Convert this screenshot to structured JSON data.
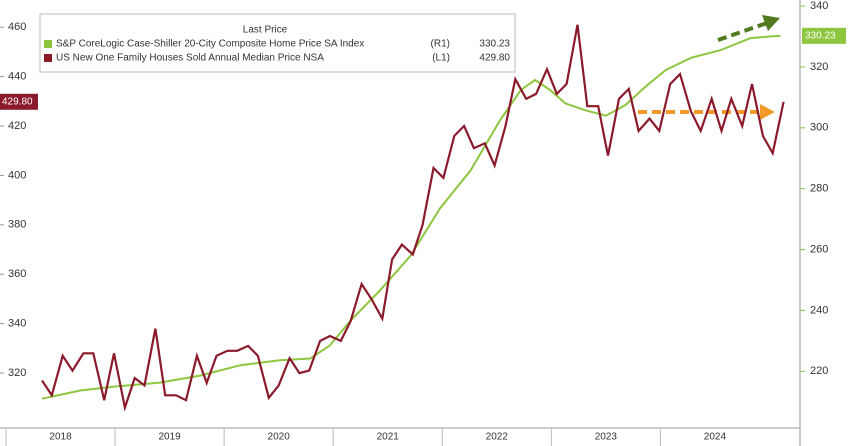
{
  "chart_data": {
    "type": "line",
    "legend_title": "Last Price",
    "xlim": [
      2017.945,
      2025.28
    ],
    "xticks": [
      {
        "value": 2018.5,
        "label": "2018"
      },
      {
        "value": 2019.5,
        "label": "2019"
      },
      {
        "value": 2020.5,
        "label": "2020"
      },
      {
        "value": 2021.5,
        "label": "2021"
      },
      {
        "value": 2022.5,
        "label": "2022"
      },
      {
        "value": 2023.5,
        "label": "2023"
      },
      {
        "value": 2024.5,
        "label": "2024"
      }
    ],
    "ylim": [
      301,
      471
    ],
    "yticks": [
      320,
      340,
      360,
      380,
      400,
      420,
      440,
      460
    ],
    "y2lim": [
      204,
      342
    ],
    "y2ticks": [
      220,
      240,
      260,
      280,
      300,
      320,
      340
    ],
    "grid": false,
    "legend": "top-left",
    "series": [
      {
        "name": "S&P CoreLogic Case-Shiller 20-City Composite Home Price SA Index",
        "axis_ref": "(R1)",
        "axis": "y2",
        "color": "#8dc63f",
        "x": [
          2018.33,
          2018.68,
          2019.0,
          2019.41,
          2019.78,
          2020.15,
          2020.51,
          2020.79,
          2020.97,
          2021.16,
          2021.43,
          2021.71,
          2021.98,
          2022.26,
          2022.53,
          2022.72,
          2022.85,
          2022.99,
          2023.13,
          2023.31,
          2023.5,
          2023.68,
          2023.86,
          2024.05,
          2024.28,
          2024.55,
          2024.83,
          2025.1
        ],
        "values": [
          211,
          213.7,
          215,
          216.3,
          218.6,
          222,
          223.6,
          224.2,
          228.5,
          236.7,
          246.6,
          258,
          273.6,
          286,
          302.5,
          312.4,
          315.7,
          312.4,
          308,
          305.8,
          304,
          307.5,
          313.4,
          319,
          323,
          325.5,
          329.5,
          330.23
        ],
        "value_labels": [
          null,
          null,
          null,
          null,
          null,
          null,
          null,
          null,
          null,
          null,
          null,
          null,
          null,
          null,
          null,
          null,
          null,
          null,
          null,
          null,
          null,
          null,
          null,
          null,
          null,
          null,
          null,
          "330.23"
        ]
      },
      {
        "name": "US New One Family Houses Sold Annual Median Price NSA",
        "axis_ref": "(L1)",
        "axis": "y",
        "color": "#8b1a2b",
        "x": [
          2018.33,
          2018.42,
          2018.52,
          2018.61,
          2018.71,
          2018.8,
          2018.9,
          2018.99,
          2019.09,
          2019.18,
          2019.27,
          2019.37,
          2019.46,
          2019.56,
          2019.65,
          2019.75,
          2019.84,
          2019.93,
          2020.03,
          2020.12,
          2020.22,
          2020.31,
          2020.41,
          2020.5,
          2020.6,
          2020.69,
          2020.78,
          2020.88,
          2020.97,
          2021.07,
          2021.16,
          2021.26,
          2021.35,
          2021.45,
          2021.54,
          2021.63,
          2021.73,
          2021.82,
          2021.92,
          2022.01,
          2022.11,
          2022.2,
          2022.29,
          2022.39,
          2022.48,
          2022.58,
          2022.67,
          2022.77,
          2022.86,
          2022.96,
          2023.05,
          2023.14,
          2023.24,
          2023.33,
          2023.43,
          2023.52,
          2023.62,
          2023.71,
          2023.8,
          2023.9,
          2023.99,
          2024.09,
          2024.18,
          2024.28,
          2024.37,
          2024.47,
          2024.56,
          2024.65,
          2024.75,
          2024.84,
          2024.94,
          2025.03,
          2025.13
        ],
        "values": [
          317,
          311,
          327,
          321,
          328,
          328,
          309,
          328,
          306,
          318,
          315,
          338,
          311,
          311,
          309,
          327,
          316,
          327,
          329,
          329,
          331,
          327,
          310,
          315,
          326,
          320,
          321,
          333,
          335,
          333,
          341,
          356,
          350,
          342,
          366,
          372,
          368,
          380,
          403,
          399,
          416,
          420,
          411,
          413,
          404,
          420,
          439,
          431,
          433,
          443,
          433,
          437,
          461,
          428,
          428,
          408,
          431,
          435,
          418,
          423,
          418,
          437,
          441,
          426,
          418,
          431,
          418,
          431,
          420,
          437,
          416,
          409,
          429.8
        ],
        "value_labels": [
          null,
          null,
          null,
          null,
          null,
          null,
          null,
          null,
          null,
          null,
          null,
          null,
          null,
          null,
          null,
          null,
          null,
          null,
          null,
          null,
          null,
          null,
          null,
          null,
          null,
          null,
          null,
          null,
          null,
          null,
          null,
          null,
          null,
          null,
          null,
          null,
          null,
          null,
          null,
          null,
          null,
          null,
          null,
          null,
          null,
          null,
          null,
          null,
          null,
          null,
          null,
          null,
          null,
          null,
          null,
          null,
          null,
          null,
          null,
          null,
          null,
          null,
          null,
          null,
          null,
          null,
          null,
          null,
          null,
          null,
          null,
          null,
          "429.80"
        ]
      }
    ]
  }
}
